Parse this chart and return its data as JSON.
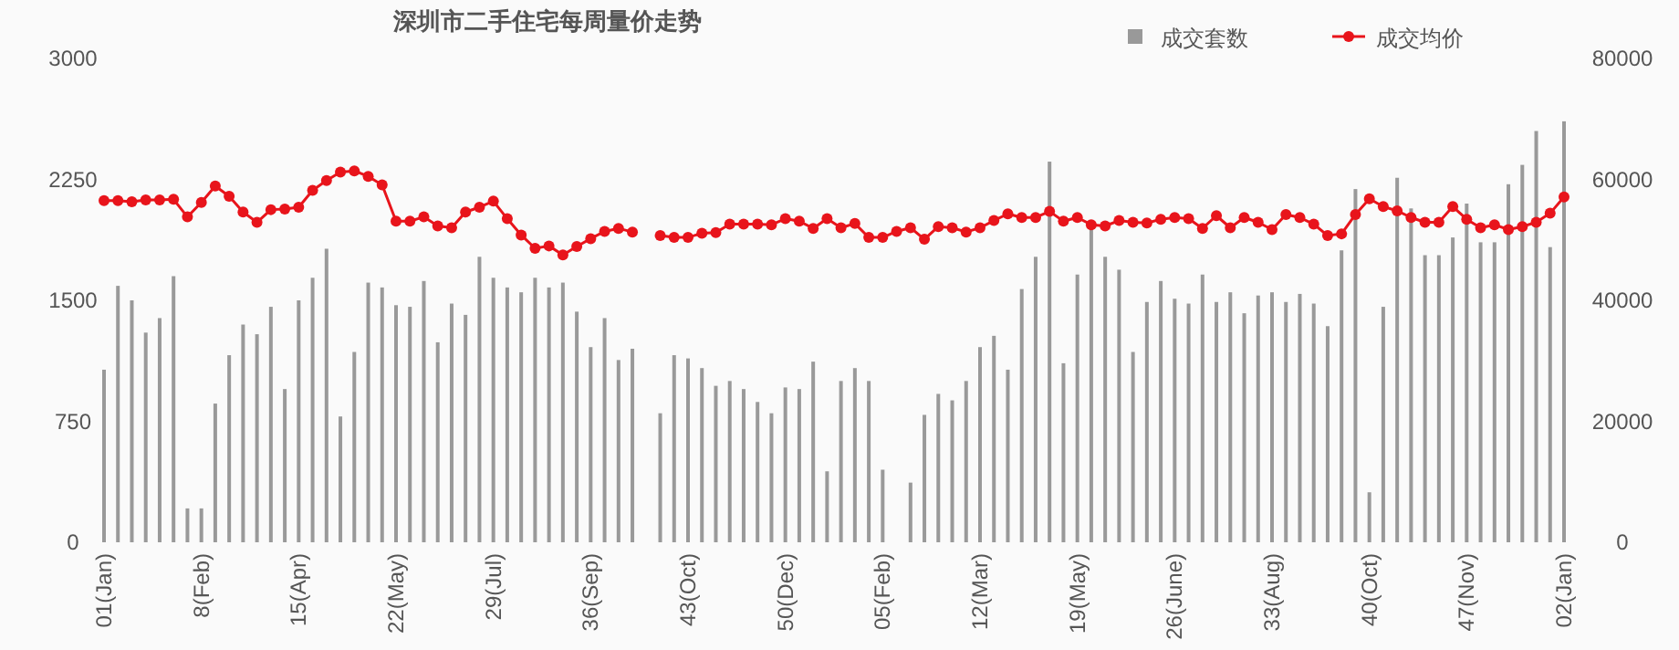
{
  "chart_data": {
    "type": "bar",
    "title": "深圳市二手住宅每周量价走势",
    "categories": [
      "01(Jan)",
      null,
      null,
      null,
      null,
      null,
      null,
      "8(Feb)",
      null,
      null,
      null,
      null,
      null,
      null,
      "15(Apr)",
      null,
      null,
      null,
      null,
      null,
      null,
      "22(May)",
      null,
      null,
      null,
      null,
      null,
      null,
      "29(Jul)",
      null,
      null,
      null,
      null,
      null,
      null,
      "36(Sep)",
      null,
      null,
      null,
      null,
      null,
      null,
      "43(Oct)",
      null,
      null,
      null,
      null,
      null,
      null,
      "50(Dec)",
      null,
      null,
      null,
      null,
      null,
      null,
      "05(Feb)",
      null,
      null,
      null,
      null,
      null,
      null,
      "12(Mar)",
      null,
      null,
      null,
      null,
      null,
      null,
      "19(May)",
      null,
      null,
      null,
      null,
      null,
      null,
      "26(June)",
      null,
      null,
      null,
      null,
      null,
      null,
      "33(Aug)",
      null,
      null,
      null,
      null,
      null,
      null,
      "40(Oct)",
      null,
      null,
      null,
      null,
      null,
      null,
      "47(Nov)",
      null,
      null,
      null,
      null,
      null,
      null,
      "02(Jan)"
    ],
    "series": [
      {
        "name": "成交套数",
        "color": "#999999",
        "values": [
          1070,
          1590,
          1500,
          1300,
          1390,
          1650,
          210,
          210,
          860,
          1160,
          1350,
          1290,
          1460,
          950,
          1500,
          1640,
          1820,
          780,
          1180,
          1610,
          1580,
          1470,
          1460,
          1620,
          1240,
          1480,
          1410,
          1770,
          1640,
          1580,
          1550,
          1640,
          1580,
          1610,
          1430,
          1210,
          1390,
          1130,
          1200,
          null,
          800,
          1160,
          1140,
          1080,
          970,
          1000,
          950,
          870,
          800,
          960,
          950,
          1120,
          440,
          1000,
          1080,
          1000,
          450,
          null,
          370,
          790,
          920,
          880,
          1000,
          1210,
          1280,
          1070,
          1570,
          1770,
          2360,
          1110,
          1660,
          1940,
          1770,
          1690,
          1180,
          1490,
          1620,
          1510,
          1480,
          1660,
          1490,
          1550,
          1420,
          1530,
          1550,
          1490,
          1540,
          1480,
          1340,
          1810,
          2190,
          310,
          1460,
          2260,
          2070,
          1780,
          1780,
          1890,
          2100,
          1860,
          1860,
          2220,
          2340,
          2550,
          1830,
          2610
        ]
      },
      {
        "name": "成交均价",
        "type": "line",
        "axis": "y2",
        "color": "#e8141b",
        "values": [
          56500,
          56500,
          56300,
          56600,
          56600,
          56700,
          53800,
          56200,
          58900,
          57200,
          54600,
          52900,
          55000,
          55100,
          55400,
          58200,
          59800,
          61200,
          61400,
          60500,
          59100,
          53100,
          53100,
          53800,
          52300,
          52000,
          54600,
          55400,
          56400,
          53500,
          50800,
          48600,
          49000,
          47500,
          48900,
          50200,
          51400,
          51900,
          51300,
          null,
          50700,
          50400,
          50400,
          51100,
          51200,
          52600,
          52600,
          52600,
          52500,
          53500,
          53100,
          51900,
          53500,
          52000,
          52700,
          50400,
          50400,
          51400,
          52000,
          50100,
          52200,
          52000,
          51300,
          52000,
          53200,
          54300,
          53700,
          53700,
          54700,
          53100,
          53700,
          52500,
          52300,
          53200,
          52900,
          52800,
          53400,
          53700,
          53500,
          51900,
          54000,
          52000,
          53700,
          52900,
          51700,
          54200,
          53700,
          52600,
          50700,
          51000,
          54200,
          56800,
          55500,
          54800,
          53700,
          52900,
          52900,
          55500,
          53400,
          52000,
          52500,
          51700,
          52200,
          52900,
          54400,
          57100
        ]
      }
    ],
    "ylim": [
      0,
      3000
    ],
    "yticks": [
      0,
      750,
      1500,
      2250,
      3000
    ],
    "y2lim": [
      0,
      80000
    ],
    "y2ticks": [
      0,
      20000,
      40000,
      60000,
      80000
    ],
    "grid": false,
    "legend": "top right",
    "marker": "circle",
    "line_style": "solid"
  }
}
